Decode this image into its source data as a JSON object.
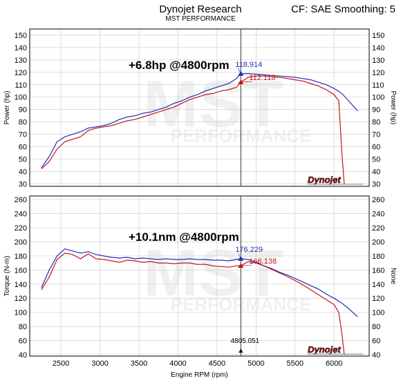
{
  "header": {
    "title": "Dynojet Research",
    "subtitle": "MST PERFORMANCE",
    "correction": "CF: SAE Smoothing: 5"
  },
  "watermark": {
    "mark": "MST",
    "text": "PERFORMANCE"
  },
  "logo": "Dynojet",
  "colors": {
    "series_a": "#1f2fb4",
    "series_b": "#c0141b",
    "grid": "#c8c8c8",
    "cursor": "#333333"
  },
  "chart_data": [
    {
      "type": "line",
      "ylabel_left": "Power (hp)",
      "ylabel_right": "Power (hp)",
      "xlim": [
        2100,
        6450
      ],
      "ylim": [
        28,
        155
      ],
      "yticks": [
        30,
        40,
        50,
        60,
        70,
        80,
        90,
        100,
        110,
        120,
        130,
        140,
        150
      ],
      "grid": true,
      "annotation": "+6.8hp @4800rpm",
      "cursor_x": 4805,
      "series": [
        {
          "color": "#1f2fb4",
          "cursor_label": "118.914",
          "cursor_y": 118.9,
          "x": [
            2250,
            2350,
            2450,
            2550,
            2650,
            2750,
            2850,
            2950,
            3050,
            3150,
            3250,
            3350,
            3450,
            3550,
            3650,
            3750,
            3850,
            3950,
            4050,
            4150,
            4250,
            4350,
            4450,
            4550,
            4650,
            4750,
            4805,
            4900,
            5000,
            5100,
            5200,
            5300,
            5400,
            5500,
            5600,
            5700,
            5800,
            5900,
            6000,
            6100,
            6200,
            6300
          ],
          "y": [
            43,
            52,
            64,
            68,
            70,
            72,
            75,
            76,
            77,
            79,
            82,
            84,
            85,
            87,
            88,
            90,
            92,
            95,
            97,
            100,
            102,
            105,
            107,
            109,
            111,
            115,
            118.9,
            119,
            118.5,
            118,
            117.5,
            117,
            116.5,
            116,
            115,
            114,
            112,
            110,
            107,
            103,
            96,
            89
          ]
        },
        {
          "color": "#c0141b",
          "cursor_label": "112.118",
          "cursor_y": 112.1,
          "x": [
            2250,
            2350,
            2450,
            2550,
            2650,
            2750,
            2850,
            2950,
            3050,
            3150,
            3250,
            3350,
            3450,
            3550,
            3650,
            3750,
            3850,
            3950,
            4050,
            4150,
            4250,
            4350,
            4450,
            4550,
            4650,
            4750,
            4805,
            4900,
            5000,
            5100,
            5200,
            5300,
            5400,
            5500,
            5600,
            5700,
            5800,
            5900,
            6000,
            6060,
            6100,
            6130
          ],
          "y": [
            42,
            48,
            58,
            64,
            66,
            68,
            73,
            75,
            76,
            77,
            79,
            81,
            82,
            84,
            86,
            88,
            90,
            92,
            95,
            98,
            100,
            102,
            103,
            105,
            106,
            108,
            112.1,
            116,
            117,
            117,
            116.5,
            116,
            115,
            114,
            113,
            111,
            109,
            106,
            102,
            97,
            55,
            30
          ]
        }
      ]
    },
    {
      "type": "line",
      "ylabel_left": "Torque (N-m)",
      "ylabel_right": "None",
      "xlabel": "Engine RPM (rpm)",
      "xlim": [
        2100,
        6450
      ],
      "ylim": [
        38,
        265
      ],
      "xticks": [
        2500,
        3000,
        3500,
        4000,
        4500,
        5000,
        5500,
        6000
      ],
      "yticks": [
        40,
        60,
        80,
        100,
        120,
        140,
        160,
        180,
        200,
        220,
        240,
        260
      ],
      "grid": true,
      "annotation": "+10.1nm @4800rpm",
      "cursor_x": 4805,
      "cursor_readout": "4805.051",
      "series": [
        {
          "color": "#1f2fb4",
          "cursor_label": "176.229",
          "cursor_y": 176.2,
          "x": [
            2250,
            2350,
            2450,
            2550,
            2650,
            2750,
            2850,
            2950,
            3050,
            3150,
            3250,
            3350,
            3450,
            3550,
            3650,
            3750,
            3850,
            3950,
            4050,
            4150,
            4250,
            4350,
            4450,
            4550,
            4650,
            4750,
            4805,
            4900,
            5000,
            5100,
            5200,
            5300,
            5400,
            5500,
            5600,
            5700,
            5800,
            5900,
            6000,
            6100,
            6200,
            6300
          ],
          "y": [
            135,
            160,
            180,
            190,
            187,
            184,
            186,
            182,
            180,
            178,
            177,
            178,
            176,
            177,
            176,
            175,
            176,
            175,
            175,
            176,
            175,
            175,
            174,
            174,
            173,
            175,
            176.2,
            175,
            171,
            166,
            162,
            157,
            153,
            148,
            143,
            138,
            133,
            126,
            120,
            113,
            104,
            94
          ]
        },
        {
          "color": "#c0141b",
          "cursor_label": "166.138",
          "cursor_y": 166.1,
          "x": [
            2250,
            2350,
            2450,
            2550,
            2650,
            2750,
            2850,
            2950,
            3050,
            3150,
            3250,
            3350,
            3450,
            3550,
            3650,
            3750,
            3850,
            3950,
            4050,
            4150,
            4250,
            4350,
            4450,
            4550,
            4650,
            4750,
            4805,
            4900,
            5000,
            5100,
            5200,
            5300,
            5400,
            5500,
            5600,
            5700,
            5800,
            5900,
            6000,
            6060,
            6100,
            6130
          ],
          "y": [
            132,
            150,
            175,
            184,
            182,
            176,
            183,
            176,
            175,
            173,
            171,
            174,
            173,
            171,
            172,
            170,
            170,
            169,
            170,
            170,
            168,
            168,
            166,
            165,
            164,
            166,
            166.1,
            172,
            170,
            166,
            161,
            156,
            151,
            145,
            139,
            132,
            125,
            118,
            111,
            100,
            70,
            40
          ]
        }
      ]
    }
  ]
}
